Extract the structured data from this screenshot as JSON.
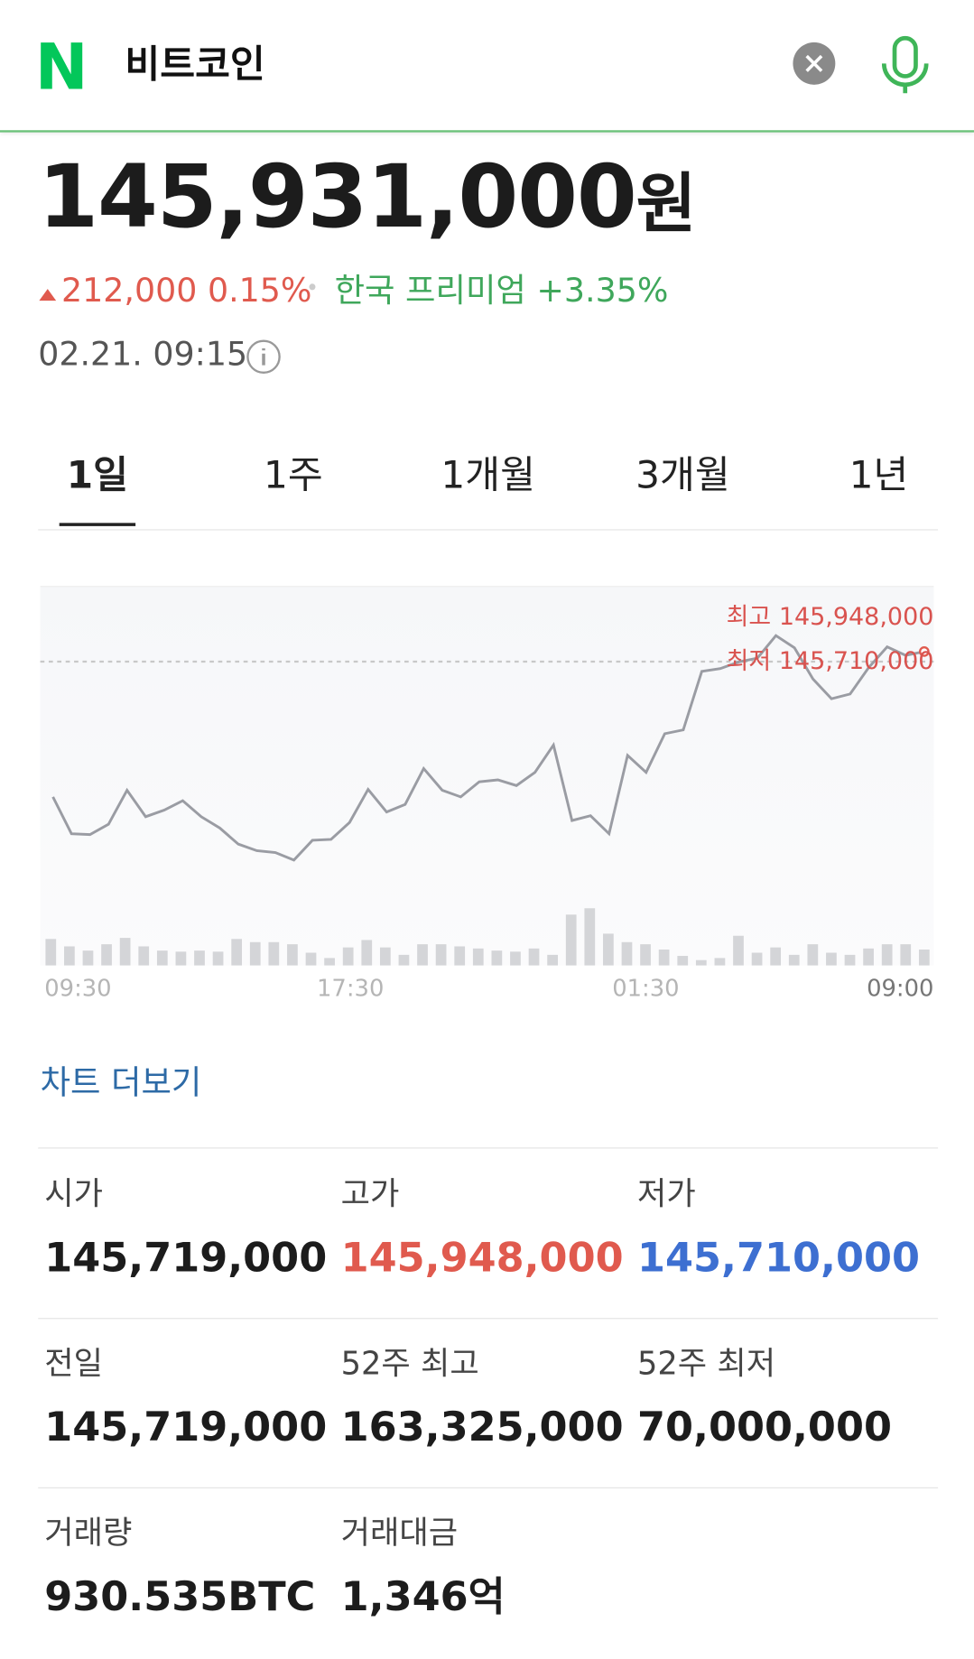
{
  "header": {
    "logo": "N",
    "query": "비트코인"
  },
  "price": {
    "value": "145,931,000",
    "unit": "원",
    "change": "212,000",
    "change_pct": "0.15%",
    "premium_label": "한국 프리미엄",
    "premium": "+3.35%",
    "timestamp": "02.21. 09:15"
  },
  "tabs": [
    "1일",
    "1주",
    "1개월",
    "3개월",
    "1년"
  ],
  "chart_data": {
    "type": "line",
    "values": [
      145777000,
      145738000,
      145737000,
      145748000,
      145784000,
      145756000,
      145763000,
      145773000,
      145756000,
      145744000,
      145727000,
      145720000,
      145718000,
      145710000,
      145731000,
      145732000,
      145750000,
      145785000,
      145761000,
      145769000,
      145807000,
      145784000,
      145777000,
      145793000,
      145795000,
      145789000,
      145803000,
      145832000,
      145752000,
      145757000,
      145738000,
      145821000,
      145803000,
      145844000,
      145848000,
      145910000,
      145913000,
      145920000,
      145924000,
      145948000,
      145935000,
      145902000,
      145881000,
      145886000,
      145914000,
      145936000,
      145927000,
      145931000
    ],
    "ylim": [
      145650000,
      146000000
    ],
    "volume": [
      25,
      18,
      14,
      20,
      26,
      18,
      14,
      13,
      14,
      13,
      25,
      22,
      22,
      20,
      12,
      7,
      17,
      24,
      17,
      10,
      20,
      20,
      18,
      16,
      14,
      13,
      16,
      10,
      48,
      54,
      30,
      22,
      20,
      15,
      9,
      5,
      7,
      28,
      12,
      17,
      10,
      20,
      12,
      10,
      16,
      20,
      20,
      15
    ],
    "volume_ylim": [
      0,
      60
    ],
    "color": "#9a9ca3",
    "high_label": "최고",
    "high": "145,948,000",
    "low_label": "최저",
    "low": "145,710,000",
    "x_labels": [
      "09:30",
      "17:30",
      "01:30",
      "09:00"
    ]
  },
  "more_link": "차트 더보기",
  "stats": [
    {
      "label": "시가",
      "value": "145,719,000"
    },
    {
      "label": "고가",
      "value": "145,948,000"
    },
    {
      "label": "저가",
      "value": "145,710,000"
    },
    {
      "label": "전일",
      "value": "145,719,000"
    },
    {
      "label": "52주 최고",
      "value": "163,325,000"
    },
    {
      "label": "52주 최저",
      "value": "70,000,000"
    },
    {
      "label": "거래량",
      "value": "930.535BTC"
    },
    {
      "label": "거래대금",
      "value": "1,346억"
    }
  ]
}
